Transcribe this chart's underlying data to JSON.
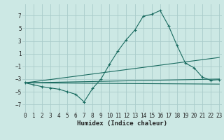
{
  "xlabel": "Humidex (Indice chaleur)",
  "xlim": [
    -0.3,
    23.3
  ],
  "ylim": [
    -8.2,
    8.8
  ],
  "yticks": [
    -7,
    -5,
    -3,
    -1,
    1,
    3,
    5,
    7
  ],
  "xticks": [
    0,
    1,
    2,
    3,
    4,
    5,
    6,
    7,
    8,
    9,
    10,
    11,
    12,
    13,
    14,
    15,
    16,
    17,
    18,
    19,
    20,
    21,
    22,
    23
  ],
  "bg_color": "#cce8e4",
  "grid_color": "#aaccca",
  "line_color": "#1a6b60",
  "main_x": [
    0,
    1,
    2,
    3,
    4,
    5,
    6,
    7,
    8,
    9,
    10,
    11,
    12,
    13,
    14,
    15,
    16,
    17,
    18,
    19,
    20,
    21,
    22,
    23
  ],
  "main_y": [
    -3.6,
    -3.9,
    -4.2,
    -4.4,
    -4.6,
    -5.0,
    -5.4,
    -6.6,
    -4.5,
    -3.0,
    -0.7,
    1.4,
    3.2,
    4.7,
    6.9,
    7.2,
    7.8,
    5.4,
    2.3,
    -0.5,
    -1.2,
    -2.7,
    -3.2,
    -3.1
  ],
  "line1_x": [
    0,
    23
  ],
  "line1_y": [
    -3.6,
    -3.8
  ],
  "line2_x": [
    0,
    23
  ],
  "line2_y": [
    -3.6,
    -3.0
  ],
  "line3_x": [
    0,
    23
  ],
  "line3_y": [
    -3.6,
    0.4
  ],
  "tick_fontsize": 5.5,
  "xlabel_fontsize": 6.5
}
